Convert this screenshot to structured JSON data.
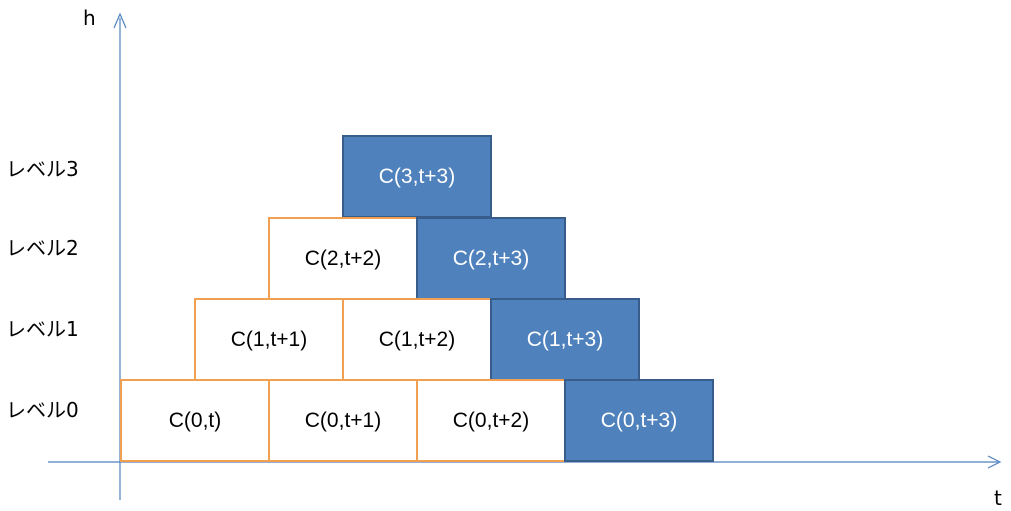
{
  "axes": {
    "vertical_label": "h",
    "horizontal_label": "t"
  },
  "colors": {
    "axis": "#4f81bd",
    "plain_border": "#f0a050",
    "accent_fill": "#4f81bd",
    "accent_border": "#385d8a"
  },
  "levels": [
    {
      "label": "レベル3",
      "cells": [
        {
          "text": "C(3,t+3)",
          "accent": true
        }
      ]
    },
    {
      "label": "レベル2",
      "cells": [
        {
          "text": "C(2,t+2)",
          "accent": false
        },
        {
          "text": "C(2,t+3)",
          "accent": true
        }
      ]
    },
    {
      "label": "レベル1",
      "cells": [
        {
          "text": "C(1,t+1)",
          "accent": false
        },
        {
          "text": "C(1,t+2)",
          "accent": false
        },
        {
          "text": "C(1,t+3)",
          "accent": true
        }
      ]
    },
    {
      "label": "レベル0",
      "cells": [
        {
          "text": "C(0,t)",
          "accent": false
        },
        {
          "text": "C(0,t+1)",
          "accent": false
        },
        {
          "text": "C(0,t+2)",
          "accent": false
        },
        {
          "text": "C(0,t+3)",
          "accent": true
        }
      ]
    }
  ]
}
